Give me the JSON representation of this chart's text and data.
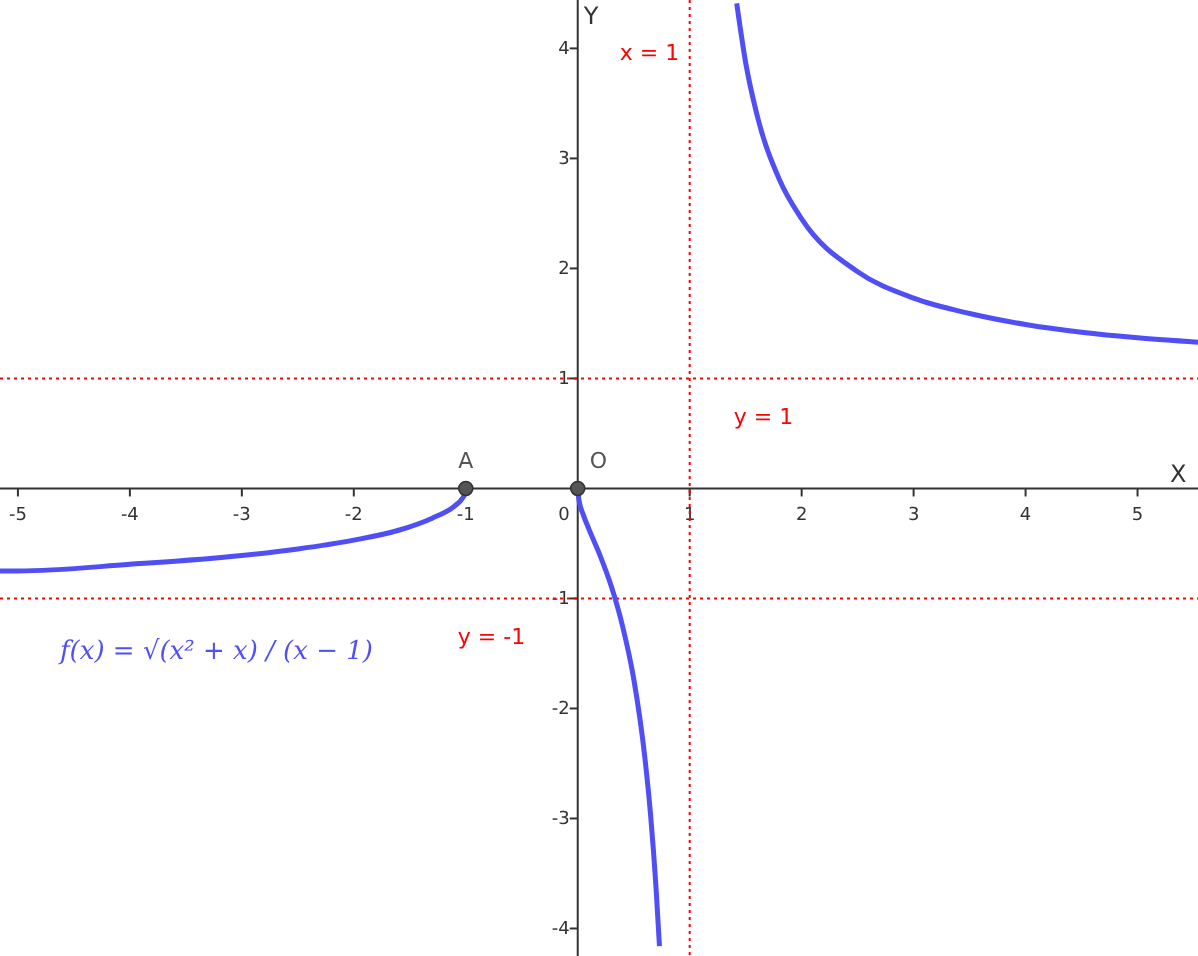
{
  "chart_data": {
    "type": "line",
    "xlabel": "X",
    "ylabel": "Y",
    "xlim": [
      -5.16,
      5.54
    ],
    "ylim": [
      -4.25,
      4.44
    ],
    "xticks": [
      -5,
      -4,
      -3,
      -2,
      -1,
      0,
      1,
      2,
      3,
      4,
      5
    ],
    "yticks": [
      -4,
      -3,
      -2,
      -1,
      1,
      2,
      3,
      4
    ],
    "grid": false,
    "marker": "none",
    "line_style": "solid",
    "series": [
      {
        "color": "#4f4ff5",
        "x": [
          -5.16,
          -5,
          -4,
          -3,
          -2.5,
          -2,
          -1.6,
          -1.3,
          -1.1,
          -1.03,
          -1.01,
          -1
        ],
        "values": [
          -0.75,
          -0.75,
          -0.69,
          -0.61,
          -0.55,
          -0.47,
          -0.38,
          -0.27,
          -0.16,
          -0.09,
          -0.05,
          0
        ]
      },
      {
        "color": "#4f4ff5",
        "x": [
          0,
          0.01,
          0.05,
          0.1,
          0.2,
          0.3,
          0.4,
          0.5,
          0.6,
          0.65,
          0.7,
          0.73
        ],
        "values": [
          0,
          -0.1,
          -0.24,
          -0.37,
          -0.61,
          -0.89,
          -1.25,
          -1.73,
          -2.45,
          -2.96,
          -3.64,
          -4.16
        ]
      },
      {
        "color": "#4f4ff5",
        "x": [
          1.42,
          1.5,
          1.6,
          1.8,
          2,
          2.5,
          3,
          3.5,
          4,
          4.5,
          5,
          5.54
        ],
        "values": [
          4.41,
          3.87,
          3.4,
          2.81,
          2.45,
          1.97,
          1.73,
          1.59,
          1.49,
          1.42,
          1.37,
          1.33
        ]
      },
      {
        "type": "scatter",
        "name": "A",
        "color": "#555555",
        "marker": "circle",
        "x": [
          -1
        ],
        "values": [
          0
        ]
      },
      {
        "type": "scatter",
        "name": "O",
        "color": "#555555",
        "marker": "circle",
        "x": [
          0
        ],
        "values": [
          0
        ]
      }
    ],
    "ref_lines": [
      {
        "axis": "x",
        "value": 1,
        "label": "x = 1",
        "color": "#ff0000",
        "line_style": "dotted"
      },
      {
        "axis": "y",
        "value": 1,
        "label": "y = 1",
        "color": "#ff0000",
        "line_style": "dotted"
      },
      {
        "axis": "y",
        "value": -1,
        "label": "y = -1",
        "color": "#ff0000",
        "line_style": "dotted"
      }
    ],
    "annotations": [
      "f(x) = √(x² + x) / (x − 1)"
    ]
  }
}
